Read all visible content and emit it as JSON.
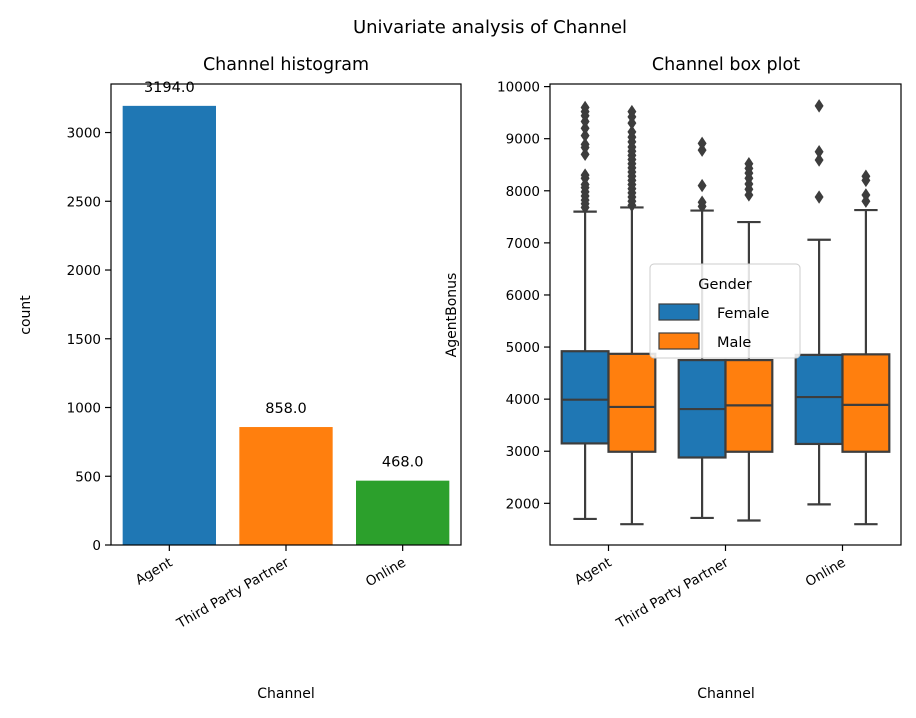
{
  "suptitle": "Univariate analysis of Channel",
  "colors": {
    "agent": "#1f77b4",
    "third_party_partner": "#ff7f0e",
    "online": "#2ca02c",
    "female": "#1f77b4",
    "male": "#ff7f0e",
    "box_line": "#3d3d3d"
  },
  "chart_data": [
    {
      "type": "bar",
      "title": "Channel histogram",
      "xlabel": "Channel",
      "ylabel": "count",
      "categories": [
        "Agent",
        "Third Party Partner",
        "Online"
      ],
      "values": [
        3194,
        858,
        468
      ],
      "data_labels": [
        "3194.0",
        "858.0",
        "468.0"
      ],
      "ylim": [
        0,
        3353
      ],
      "yticks": [
        0,
        500,
        1000,
        1500,
        2000,
        2500,
        3000
      ],
      "grid": false
    },
    {
      "type": "box",
      "title": "Channel box plot",
      "xlabel": "Channel",
      "ylabel": "AgentBonus",
      "categories": [
        "Agent",
        "Third Party Partner",
        "Online"
      ],
      "ylim": [
        1200,
        10050
      ],
      "yticks": [
        2000,
        3000,
        4000,
        5000,
        6000,
        7000,
        8000,
        9000,
        10000
      ],
      "grid": false,
      "legend": {
        "title": "Gender",
        "position": "center-right",
        "entries": [
          "Female",
          "Male"
        ]
      },
      "series": [
        {
          "name": "Female",
          "boxes": [
            {
              "category": "Agent",
              "whisker_low": 1700,
              "q1": 3150,
              "median": 3990,
              "q3": 4920,
              "whisker_high": 7600,
              "outliers": [
                7680,
                7750,
                7820,
                7900,
                7980,
                8060,
                8120,
                8240,
                8300,
                8700,
                8830,
                8890,
                9060,
                9200,
                9330,
                9440,
                9520,
                9600
              ]
            },
            {
              "category": "Third Party Partner",
              "whisker_low": 1720,
              "q1": 2880,
              "median": 3810,
              "q3": 4750,
              "whisker_high": 7620,
              "outliers": [
                7700,
                7780,
                8100,
                8780,
                8910
              ]
            },
            {
              "category": "Online",
              "whisker_low": 1980,
              "q1": 3140,
              "median": 4040,
              "q3": 4850,
              "whisker_high": 7060,
              "outliers": [
                7880,
                8590,
                8750,
                9630
              ]
            }
          ]
        },
        {
          "name": "Male",
          "boxes": [
            {
              "category": "Agent",
              "whisker_low": 1600,
              "q1": 2990,
              "median": 3850,
              "q3": 4870,
              "whisker_high": 7680,
              "outliers": [
                7720,
                7800,
                7880,
                7960,
                8040,
                8120,
                8200,
                8280,
                8360,
                8440,
                8520,
                8600,
                8680,
                8760,
                8840,
                8940,
                9030,
                9130,
                9300,
                9420,
                9520
              ]
            },
            {
              "category": "Third Party Partner",
              "whisker_low": 1670,
              "q1": 2990,
              "median": 3880,
              "q3": 4750,
              "whisker_high": 7400,
              "outliers": [
                7920,
                8030,
                8130,
                8240,
                8340,
                8430,
                8520
              ]
            },
            {
              "category": "Online",
              "whisker_low": 1600,
              "q1": 2990,
              "median": 3890,
              "q3": 4860,
              "whisker_high": 7630,
              "outliers": [
                7800,
                7920,
                8200,
                8280
              ]
            }
          ]
        }
      ]
    }
  ]
}
